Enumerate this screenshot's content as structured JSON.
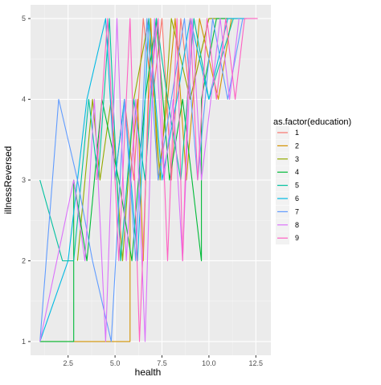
{
  "chart_data": {
    "type": "line",
    "title": "",
    "xlabel": "health",
    "ylabel": "illnessReversed",
    "xlim": [
      0.5,
      13.3
    ],
    "ylim": [
      0.83,
      5.17
    ],
    "x_ticks": [
      2.5,
      5.0,
      7.5,
      10.0,
      12.5
    ],
    "x_tick_labels": [
      "2.5",
      "5.0",
      "7.5",
      "10.0",
      "12.5"
    ],
    "y_ticks": [
      1,
      2,
      3,
      4,
      5
    ],
    "y_tick_labels": [
      "1",
      "2",
      "3",
      "4",
      "5"
    ],
    "grid": true,
    "background": "#EBEBEB",
    "legend": {
      "title": "as.factor(education)",
      "placement": "right",
      "entries": [
        "1",
        "2",
        "3",
        "4",
        "5",
        "6",
        "7",
        "8",
        "9"
      ]
    },
    "series": [
      {
        "name": "1",
        "color": "#F8766D",
        "x": [
          5.0,
          5.5,
          6.0,
          6.5,
          7.0,
          7.5,
          8.0,
          8.5,
          9.0,
          10.0,
          11.0,
          12.0
        ],
        "y": [
          3,
          4,
          3,
          5,
          4,
          5,
          3,
          5,
          4,
          5,
          5,
          5
        ]
      },
      {
        "name": "2",
        "color": "#D39200",
        "x": [
          1.0,
          5.8,
          5.8,
          6.2,
          6.5,
          6.9,
          7.3,
          7.8,
          8.2,
          8.8,
          9.5,
          10.5,
          11.2
        ],
        "y": [
          1,
          1,
          3,
          4,
          2,
          5,
          3,
          4,
          5,
          3,
          5,
          4,
          5
        ]
      },
      {
        "name": "3",
        "color": "#93AA00",
        "x": [
          3.0,
          3.8,
          4.2,
          4.8,
          5.4,
          6.0,
          6.8,
          7.4,
          8.0,
          9.0,
          10.0,
          11.5
        ],
        "y": [
          2,
          4,
          3,
          4,
          2,
          4,
          5,
          3,
          5,
          4,
          5,
          5
        ]
      },
      {
        "name": "4",
        "color": "#00BA38",
        "x": [
          1.0,
          2.8,
          2.8,
          3.5,
          4.3,
          5.2,
          5.9,
          6.6,
          7.2,
          7.9,
          8.6,
          9.6,
          9.6,
          10.4,
          11.0
        ],
        "y": [
          1,
          1,
          3,
          2,
          4,
          3,
          2,
          4,
          5,
          3,
          4,
          2,
          4,
          5,
          5
        ]
      },
      {
        "name": "5",
        "color": "#00C19F",
        "x": [
          1.0,
          2.2,
          2.8,
          3.6,
          4.1,
          4.7,
          5.3,
          6.0,
          6.6,
          7.2,
          7.8,
          8.5,
          9.2,
          10.0,
          11.3
        ],
        "y": [
          3,
          2,
          2,
          4,
          3,
          5,
          2,
          4,
          3,
          5,
          4,
          3,
          5,
          4,
          5
        ]
      },
      {
        "name": "6",
        "color": "#00B9E3",
        "x": [
          1.0,
          2.5,
          3.5,
          4.5,
          5.0,
          5.5,
          6.2,
          6.8,
          7.5,
          8.3,
          9.0,
          10.0,
          11.0,
          12.0
        ],
        "y": [
          1,
          2,
          4,
          5,
          3,
          4,
          2,
          5,
          3,
          4,
          5,
          4,
          5,
          5
        ]
      },
      {
        "name": "7",
        "color": "#619CFF",
        "x": [
          1.0,
          2.0,
          3.0,
          3.8,
          4.8,
          5.5,
          6.1,
          6.7,
          7.3,
          8.0,
          8.7,
          9.4,
          10.2,
          11.0,
          11.8
        ],
        "y": [
          1,
          4,
          3,
          2,
          1,
          4,
          2,
          5,
          3,
          4,
          5,
          3,
          5,
          4,
          5
        ]
      },
      {
        "name": "8",
        "color": "#DB72FB",
        "x": [
          1.0,
          2.8,
          3.4,
          3.9,
          4.5,
          5.1,
          5.6,
          6.1,
          6.6,
          7.1,
          7.6,
          8.1,
          8.6,
          9.1,
          9.6,
          10.1,
          10.6,
          11.1,
          11.6
        ],
        "y": [
          1,
          3,
          2,
          4,
          1,
          5,
          2,
          4,
          1,
          5,
          3,
          4,
          2,
          5,
          3,
          4,
          5,
          4,
          5
        ]
      },
      {
        "name": "9",
        "color": "#FF61C3",
        "x": [
          4.0,
          4.6,
          5.2,
          5.8,
          6.3,
          6.8,
          7.3,
          7.8,
          8.3,
          8.6,
          9.0,
          9.4,
          9.9,
          10.4,
          10.9,
          11.4,
          11.9,
          12.6
        ],
        "y": [
          3,
          5,
          2,
          5,
          1,
          4,
          5,
          2,
          5,
          2,
          5,
          3,
          5,
          4,
          5,
          4,
          5,
          5
        ]
      }
    ]
  }
}
